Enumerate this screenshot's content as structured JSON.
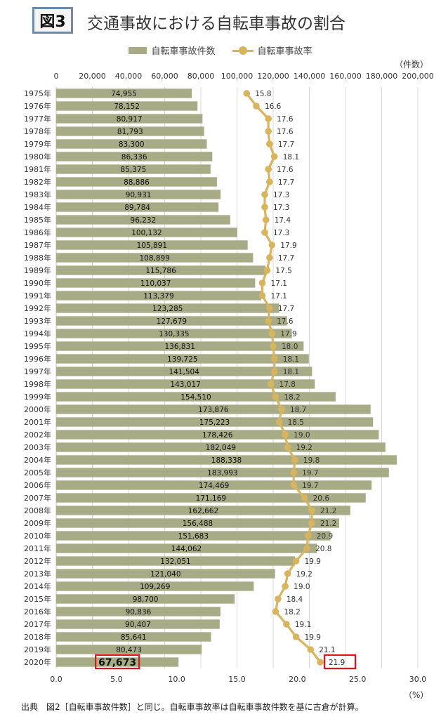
{
  "header": {
    "badge": "図3",
    "title": "交通事故における自転車事故の割合"
  },
  "legend": {
    "bar_label": "自転車事故件数",
    "line_label": "自転車事故率"
  },
  "axes": {
    "top_unit": "（件数）",
    "bottom_unit": "（%）"
  },
  "footnote": "出典　図2［自転車事故件数］と同じ。自転車事故率は自転車事故件数を基に古倉が計算。",
  "colors": {
    "bar": "#a7ab86",
    "line": "#d9b45f",
    "highlight": "#e0141b",
    "grid": "#d9d9d9"
  },
  "chart_data": {
    "type": "bar",
    "orientation": "horizontal",
    "categories": [
      "1975年",
      "1976年",
      "1977年",
      "1978年",
      "1979年",
      "1980年",
      "1981年",
      "1982年",
      "1983年",
      "1984年",
      "1985年",
      "1986年",
      "1987年",
      "1988年",
      "1989年",
      "1990年",
      "1991年",
      "1992年",
      "1993年",
      "1994年",
      "1995年",
      "1996年",
      "1997年",
      "1998年",
      "1999年",
      "2000年",
      "2001年",
      "2002年",
      "2003年",
      "2004年",
      "2005年",
      "2006年",
      "2007年",
      "2008年",
      "2009年",
      "2010年",
      "2011年",
      "2012年",
      "2013年",
      "2014年",
      "2015年",
      "2016年",
      "2017年",
      "2018年",
      "2019年",
      "2020年"
    ],
    "series": [
      {
        "name": "自転車事故件数",
        "kind": "bar",
        "axis": "top",
        "values": [
          74955,
          78152,
          80917,
          81793,
          83300,
          86336,
          85375,
          88886,
          90931,
          89784,
          96232,
          100132,
          105891,
          108899,
          115786,
          110037,
          113379,
          123285,
          127679,
          130335,
          136831,
          139725,
          141504,
          143017,
          154510,
          173876,
          175223,
          178426,
          182049,
          188338,
          183993,
          174469,
          171169,
          162662,
          156488,
          151683,
          144062,
          132051,
          121040,
          109269,
          98700,
          90836,
          90407,
          85641,
          80473,
          67673
        ],
        "labels": [
          "74,955",
          "78,152",
          "80,917",
          "81,793",
          "83,300",
          "86,336",
          "85,375",
          "88,886",
          "90,931",
          "89,784",
          "96,232",
          "100,132",
          "105,891",
          "108,899",
          "115,786",
          "110,037",
          "113,379",
          "123,285",
          "127,679",
          "130,335",
          "136,831",
          "139,725",
          "141,504",
          "143,017",
          "154,510",
          "173,876",
          "175,223",
          "178,426",
          "182,049",
          "188,338",
          "183,993",
          "174,469",
          "171,169",
          "162,662",
          "156,488",
          "151,683",
          "144,062",
          "132,051",
          "121,040",
          "109,269",
          "98,700",
          "90,836",
          "90,407",
          "85,641",
          "80,473",
          "67,673"
        ]
      },
      {
        "name": "自転車事故率",
        "kind": "line",
        "axis": "bottom",
        "values": [
          15.8,
          16.6,
          17.6,
          17.6,
          17.7,
          18.1,
          17.6,
          17.7,
          17.3,
          17.3,
          17.4,
          17.3,
          17.9,
          17.7,
          17.5,
          17.1,
          17.1,
          17.7,
          17.6,
          17.9,
          18.0,
          18.1,
          18.1,
          17.8,
          18.2,
          18.7,
          18.5,
          19.0,
          19.2,
          19.8,
          19.7,
          19.7,
          20.6,
          21.2,
          21.2,
          20.9,
          20.8,
          19.9,
          19.2,
          19.0,
          18.4,
          18.2,
          19.1,
          19.9,
          21.1,
          21.9
        ],
        "labels": [
          "15.8",
          "16.6",
          "17.6",
          "17.6",
          "17.7",
          "18.1",
          "17.6",
          "17.7",
          "17.3",
          "17.3",
          "17.4",
          "17.3",
          "17.9",
          "17.7",
          "17.5",
          "17.1",
          "17.1",
          "17.7",
          "17.6",
          "17.9",
          "18.0",
          "18.1",
          "18.1",
          "17.8",
          "18.2",
          "18.7",
          "18.5",
          "19.0",
          "19.2",
          "19.8",
          "19.7",
          "19.7",
          "20.6",
          "21.2",
          "21.2",
          "20.9",
          "20.8",
          "19.9",
          "19.2",
          "19.0",
          "18.4",
          "18.2",
          "19.1",
          "19.9",
          "21.1",
          "21.9"
        ]
      }
    ],
    "top_axis": {
      "range": [
        0,
        200000
      ],
      "ticks": [
        "0",
        "20,000",
        "40,000",
        "60,000",
        "80,000",
        "100,000",
        "120,000",
        "140,000",
        "160,000",
        "180,000",
        "200,000"
      ]
    },
    "bottom_axis": {
      "range": [
        0,
        30
      ],
      "ticks": [
        "0.0",
        "5.0",
        "10.0",
        "15.0",
        "20.0",
        "25.0",
        "30.0"
      ]
    },
    "grid": true,
    "legend_position": "top",
    "highlight": "2020年"
  }
}
